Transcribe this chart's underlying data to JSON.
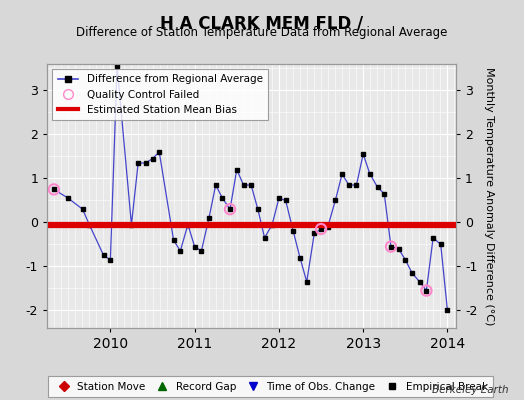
{
  "title": "H A CLARK MEM FLD /",
  "subtitle": "Difference of Station Temperature Data from Regional Average",
  "ylabel": "Monthly Temperature Anomaly Difference (°C)",
  "bias": -0.05,
  "xlim": [
    2009.25,
    2014.1
  ],
  "ylim": [
    -2.4,
    3.6
  ],
  "yticks": [
    -2,
    -1,
    0,
    1,
    2,
    3
  ],
  "xticks": [
    2010,
    2011,
    2012,
    2013,
    2014
  ],
  "bg_color": "#d8d8d8",
  "plot_bg": "#e8e8e8",
  "grid_color": "#ffffff",
  "line_color": "#4444cc",
  "marker_color": "#000000",
  "bias_color": "#dd0000",
  "qc_color": "#ff88cc",
  "berkeley_earth_text": "Berkeley Earth",
  "data_x": [
    2009.33,
    2009.5,
    2009.67,
    2009.75,
    2009.92,
    2010.0,
    2010.08,
    2010.25,
    2010.33,
    2010.42,
    2010.5,
    2010.58,
    2010.75,
    2010.83,
    2010.92,
    2011.0,
    2011.08,
    2011.17,
    2011.25,
    2011.33,
    2011.42,
    2011.5,
    2011.58,
    2011.67,
    2011.75,
    2011.83,
    2011.92,
    2012.0,
    2012.08,
    2012.17,
    2012.25,
    2012.33,
    2012.42,
    2012.5,
    2012.58,
    2012.67,
    2012.75,
    2012.83,
    2012.92,
    2013.0,
    2013.08,
    2013.17,
    2013.25,
    2013.33,
    2013.42,
    2013.5,
    2013.58,
    2013.67,
    2013.75,
    2013.83,
    2013.92,
    2014.0
  ],
  "data_y": [
    0.75,
    0.55,
    0.3,
    -0.05,
    -0.75,
    -0.85,
    3.55,
    -0.05,
    1.35,
    1.35,
    1.45,
    1.6,
    -0.4,
    -0.65,
    -0.05,
    -0.55,
    -0.65,
    0.1,
    0.85,
    0.55,
    0.3,
    1.2,
    0.85,
    0.85,
    0.3,
    -0.35,
    -0.05,
    0.55,
    0.5,
    -0.2,
    -0.8,
    -1.35,
    -0.25,
    -0.15,
    -0.1,
    0.5,
    1.1,
    0.85,
    0.85,
    1.55,
    1.1,
    0.8,
    0.65,
    -0.55,
    -0.6,
    -0.85,
    -1.15,
    -1.35,
    -1.55,
    -0.35,
    -0.5,
    -2.0
  ],
  "qc_failed_x": [
    2009.33,
    2011.42,
    2012.5,
    2013.33,
    2013.75
  ],
  "qc_failed_y": [
    0.75,
    0.3,
    -0.15,
    -0.55,
    -1.55
  ]
}
